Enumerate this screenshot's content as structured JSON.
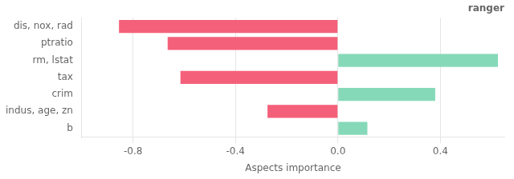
{
  "chart_data": {
    "type": "bar",
    "orientation": "horizontal",
    "title": "ranger",
    "xlabel": "Aspects importance",
    "categories": [
      "dis, nox, rad",
      "ptratio",
      "rm, lstat",
      "tax",
      "crim",
      "indus, age, zn",
      "b"
    ],
    "values": [
      -0.855,
      -0.665,
      0.625,
      -0.615,
      0.38,
      -0.275,
      0.115
    ],
    "colors": [
      "#f4607a",
      "#f4607a",
      "#86d9b8",
      "#f4607a",
      "#86d9b8",
      "#f4607a",
      "#86d9b8"
    ],
    "xlim": [
      -1.0,
      0.65
    ],
    "xticks": [
      -0.8,
      -0.4,
      {
        "value": 0,
        "label": "0.0"
      },
      0.4
    ],
    "grid": true
  }
}
